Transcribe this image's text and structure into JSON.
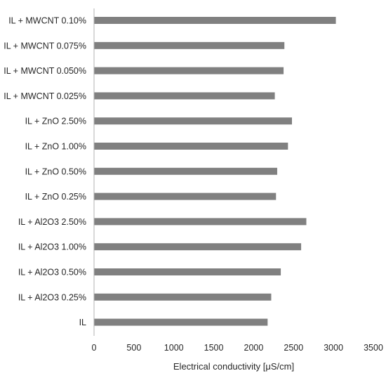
{
  "chart_data": {
    "type": "bar",
    "orientation": "horizontal",
    "categories": [
      "IL + MWCNT 0.10%",
      "IL + MWCNT 0.075%",
      "IL + MWCNT 0.050%",
      "IL + MWCNT 0.025%",
      "IL + ZnO 2.50%",
      "IL + ZnO 1.00%",
      "IL + ZnO 0.50%",
      "IL + ZnO 0.25%",
      "IL + Al2O3 2.50%",
      "IL + Al2O3 1.00%",
      "IL + Al2O3 0.50%",
      "IL + Al2O3 0.25%",
      "IL"
    ],
    "values": [
      3030,
      2385,
      2375,
      2265,
      2480,
      2430,
      2295,
      2280,
      2660,
      2595,
      2340,
      2220,
      2175
    ],
    "xlabel": "Electrical conductivity [μS/cm]",
    "ylabel": "",
    "title": "",
    "xlim": [
      0,
      3500
    ],
    "xticks": [
      "0",
      "500",
      "1000",
      "1500",
      "2000",
      "2500",
      "3000",
      "3500"
    ],
    "grid": false,
    "legend": "none",
    "bar_color": "#808080",
    "axis_color": "#b0b0b0"
  }
}
